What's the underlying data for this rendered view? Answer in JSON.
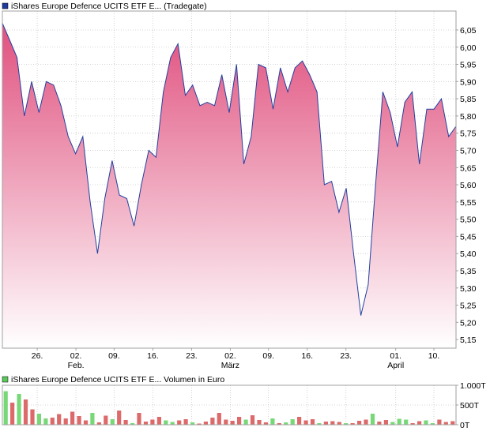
{
  "colors": {
    "line": "#2340a0",
    "fill_top": "#e0507e",
    "fill_bottom": "#ffffff",
    "grid": "#c8c8c8",
    "frame": "#a0a0a0",
    "price_legend_swatch": "#1f3b9a",
    "volume_legend_swatch": "#5cc85c",
    "volume_up": "#78d878",
    "volume_down": "#dc6a6a",
    "text": "#000000"
  },
  "chart_data": [
    {
      "type": "area",
      "title": "iShares Europe Defence UCITS ETF E... (Tradegate)",
      "legend": "iShares Europe Defence UCITS ETF E... (Tradegate)",
      "x_ticks": [
        "26.",
        "02.",
        "09.",
        "16.",
        "23.",
        "02.",
        "09.",
        "16.",
        "23.",
        "01.",
        "10."
      ],
      "x_ticks_at": [
        6.3,
        13.3,
        20.2,
        27.2,
        34.2,
        41.2,
        48.1,
        55.1,
        62.1,
        71.1,
        78.0
      ],
      "month_labels": [
        {
          "label": "Feb.",
          "at": 13.3
        },
        {
          "label": "März",
          "at": 41.2
        },
        {
          "label": "April",
          "at": 71.1
        }
      ],
      "y_ticks": [
        "6,05",
        "6,00",
        "5,95",
        "5,90",
        "5,85",
        "5,80",
        "5,75",
        "5,70",
        "5,65",
        "5,60",
        "5,55",
        "5,50",
        "5,45",
        "5,40",
        "5,35",
        "5,30",
        "5,25",
        "5,20",
        "5,15"
      ],
      "ylim": [
        5.125,
        6.105
      ],
      "xlim": [
        0,
        82
      ],
      "grid": true,
      "series": [
        {
          "values": [
            6.07,
            6.02,
            5.97,
            5.8,
            5.9,
            5.81,
            5.9,
            5.89,
            5.83,
            5.74,
            5.69,
            5.74,
            5.55,
            5.4,
            5.56,
            5.67,
            5.57,
            5.56,
            5.48,
            5.6,
            5.7,
            5.68,
            5.87,
            5.97,
            6.01,
            5.86,
            5.89,
            5.83,
            5.84,
            5.83,
            5.92,
            5.81,
            5.95,
            5.66,
            5.74,
            5.95,
            5.94,
            5.82,
            5.94,
            5.87,
            5.94,
            5.96,
            5.92,
            5.87,
            5.6,
            5.61,
            5.52,
            5.59,
            5.4,
            5.22,
            5.31,
            5.6,
            5.87,
            5.81,
            5.71,
            5.84,
            5.87,
            5.66,
            5.82,
            5.82,
            5.85,
            5.74,
            5.77
          ]
        }
      ]
    },
    {
      "type": "bar",
      "title": "iShares Europe Defence UCITS ETF E... Volumen in Euro",
      "legend": "iShares Europe Defence UCITS ETF E... Volumen in Euro",
      "y_ticks": [
        "1.000T",
        "500T",
        "0T"
      ],
      "ylim": [
        0,
        1000
      ],
      "grid": true,
      "values": [
        850,
        560,
        780,
        640,
        390,
        280,
        160,
        180,
        270,
        160,
        330,
        220,
        110,
        300,
        60,
        230,
        140,
        360,
        120,
        40,
        300,
        80,
        130,
        200,
        110,
        70,
        110,
        140,
        60,
        30,
        80,
        180,
        300,
        130,
        100,
        200,
        130,
        240,
        120,
        60,
        160,
        40,
        60,
        140,
        200,
        110,
        140,
        40,
        80,
        90,
        70,
        40,
        40,
        100,
        130,
        280,
        80,
        120,
        70,
        150,
        130,
        40,
        90,
        110,
        40,
        130,
        70,
        90
      ],
      "up": [
        1,
        0,
        1,
        0,
        0,
        1,
        1,
        0,
        0,
        0,
        0,
        0,
        0,
        1,
        0,
        0,
        1,
        0,
        0,
        1,
        0,
        0,
        0,
        0,
        1,
        1,
        0,
        0,
        1,
        0,
        0,
        0,
        0,
        0,
        0,
        0,
        1,
        0,
        0,
        0,
        1,
        0,
        1,
        1,
        0,
        0,
        0,
        1,
        0,
        0,
        0,
        1,
        0,
        0,
        0,
        1,
        0,
        0,
        1,
        1,
        1,
        0,
        0,
        1,
        1,
        0,
        0,
        0
      ]
    }
  ]
}
